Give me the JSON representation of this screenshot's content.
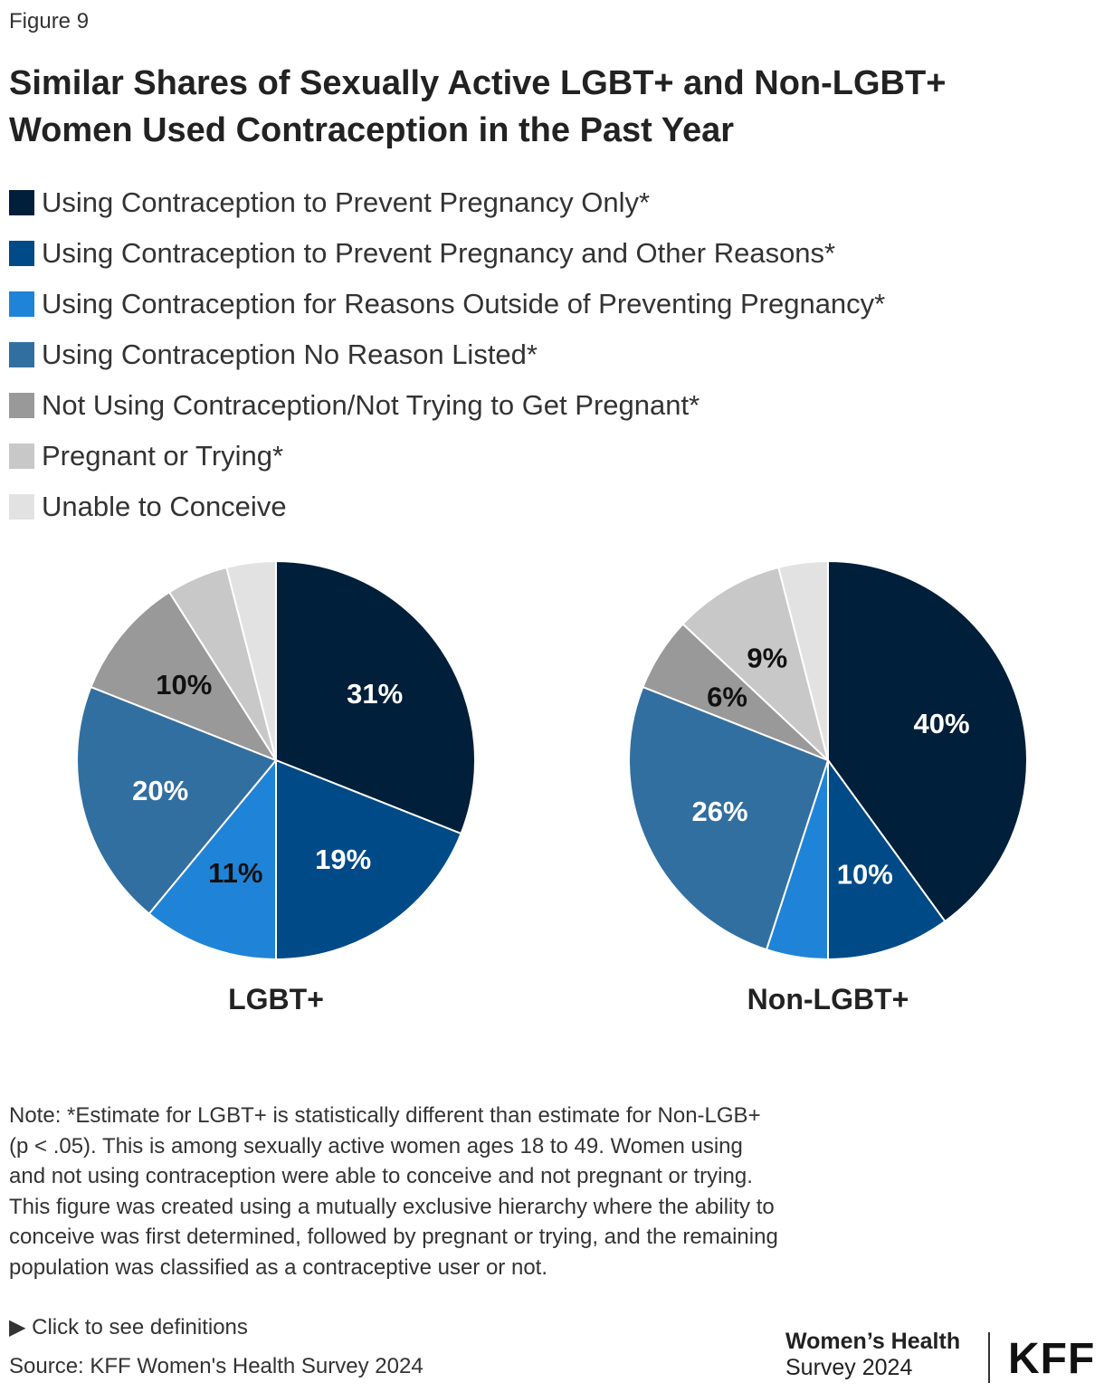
{
  "figure_label": "Figure 9",
  "title": "Similar Shares of Sexually Active LGBT+ and Non-LGBT+ Women Used Contraception in the Past Year",
  "chart_data": {
    "type": "pie",
    "legend_position": "top-left",
    "categories": [
      "Using Contraception to Prevent Pregnancy Only*",
      "Using Contraception to Prevent Pregnancy and Other Reasons*",
      "Using Contraception for Reasons Outside of Preventing Pregnancy*",
      "Using Contraception No Reason Listed*",
      "Not Using Contraception/Not Trying to Get Pregnant*",
      "Pregnant or Trying*",
      "Unable to Conceive"
    ],
    "colors": [
      "#001f3a",
      "#004a87",
      "#1f84d8",
      "#326fa1",
      "#999999",
      "#c8c8c8",
      "#e2e2e2"
    ],
    "label_colors": [
      "#ffffff",
      "#ffffff",
      "#111111",
      "#ffffff",
      "#111111",
      "#111111",
      "#111111"
    ],
    "pies": [
      {
        "name": "LGBT+",
        "values": [
          31,
          19,
          11,
          20,
          10,
          5,
          4
        ],
        "labels": [
          "31%",
          "19%",
          "11%",
          "20%",
          "10%",
          "",
          ""
        ]
      },
      {
        "name": "Non-LGBT+",
        "values": [
          40,
          10,
          5,
          26,
          6,
          9,
          4
        ],
        "labels": [
          "40%",
          "10%",
          "",
          "26%",
          "6%",
          "9%",
          ""
        ]
      }
    ]
  },
  "note": "Note: *Estimate for LGBT+ is statistically different than estimate for Non-LGB+ (p < .05). This is among sexually active women ages 18 to 49. Women using and not using contraception were able to conceive and not pregnant or trying. This figure was created using a mutually exclusive hierarchy where the ability to conceive was first determined, followed by pregnant or trying, and the remaining population was classified as a contraceptive user or not.",
  "definitions_link": "▶  Click to see definitions",
  "source": "Source: KFF Women's Health Survey 2024",
  "footer_logo": {
    "line1": "Women’s Health",
    "line2": "Survey 2024",
    "brand": "KFF"
  }
}
